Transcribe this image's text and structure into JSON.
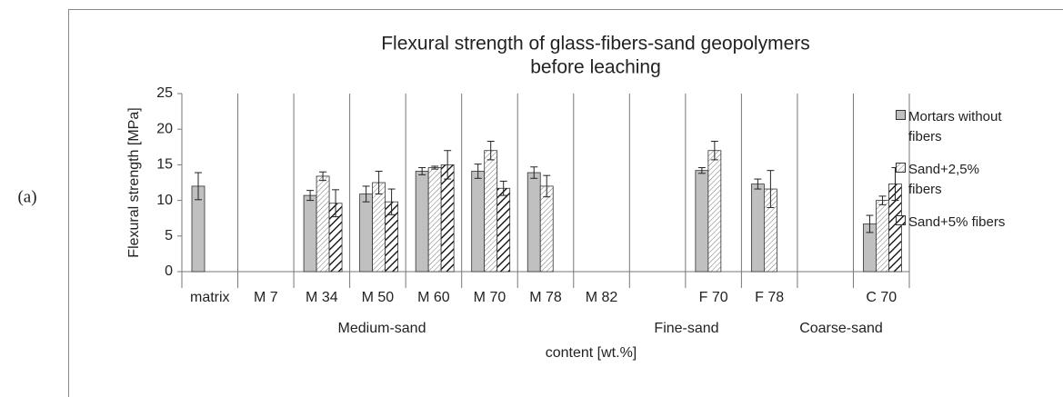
{
  "panel_label": "(a)",
  "chart_data": {
    "type": "bar",
    "title_lines": [
      "Flexural strength of glass-fibers-sand geopolymers",
      "before leaching"
    ],
    "y_label": "Flexural strength  [MPa]",
    "x_label": "content [wt.%]",
    "groups": [
      "Medium-sand",
      "Fine-sand",
      "Coarse-sand"
    ],
    "categories": [
      "matrix",
      "M 7",
      "M 34",
      "M 50",
      "M 60",
      "M 70",
      "M 78",
      "M 82",
      null,
      "F 70",
      "F 78",
      null,
      "C 70"
    ],
    "ylim": [
      0,
      25
    ],
    "yticks": [
      0,
      5,
      10,
      15,
      20,
      25
    ],
    "series": [
      {
        "name": "Mortars without fibers",
        "color": "#c0c0c0",
        "values": [
          12,
          null,
          10.7,
          10.9,
          14.1,
          14.1,
          13.9,
          null,
          null,
          14.2,
          12.3,
          null,
          6.7
        ],
        "errors": [
          1.9,
          null,
          0.7,
          1.1,
          0.5,
          1.0,
          0.8,
          null,
          null,
          0.4,
          0.7,
          null,
          1.2
        ]
      },
      {
        "name": "Sand+2,5% fibers",
        "color": "#777777",
        "values": [
          null,
          null,
          13.4,
          12.5,
          14.6,
          17,
          12,
          null,
          null,
          17,
          11.6,
          null,
          10
        ],
        "errors": [
          null,
          null,
          0.6,
          1.6,
          0.2,
          1.3,
          1.5,
          null,
          null,
          1.3,
          2.6,
          null,
          0.6
        ]
      },
      {
        "name": "Sand+5% fibers",
        "color": "#000000",
        "values": [
          null,
          null,
          9.6,
          9.8,
          15,
          11.7,
          null,
          null,
          null,
          null,
          null,
          null,
          12.3
        ],
        "errors": [
          null,
          null,
          1.9,
          1.8,
          2.0,
          1.0,
          null,
          null,
          null,
          null,
          null,
          null,
          2.3
        ]
      }
    ]
  }
}
